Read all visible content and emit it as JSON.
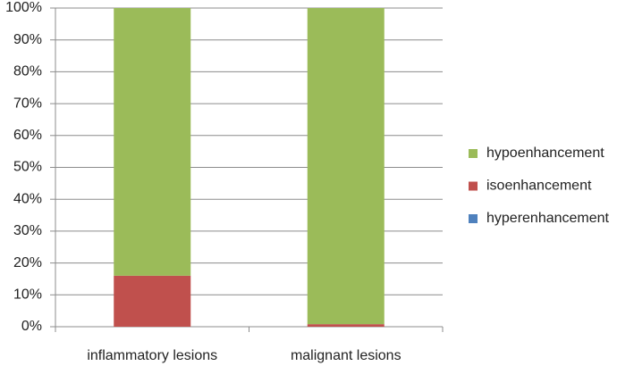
{
  "chart_data": {
    "type": "stacked_bar",
    "categories": [
      "inflammatory lesions",
      "malignant lesions"
    ],
    "series": [
      {
        "name": "hyperenhancement",
        "color": "#4f81bd",
        "values": [
          0,
          0
        ]
      },
      {
        "name": "isoenhancement",
        "color": "#c0504d",
        "values": [
          16,
          0.8
        ]
      },
      {
        "name": "hypoenhancement",
        "color": "#9bbb59",
        "values": [
          84,
          99.2
        ]
      }
    ],
    "ylim": [
      0,
      100
    ],
    "yticks": [
      {
        "value": 0,
        "label": "0%"
      },
      {
        "value": 10,
        "label": "10%"
      },
      {
        "value": 20,
        "label": "20%"
      },
      {
        "value": 30,
        "label": "30%"
      },
      {
        "value": 40,
        "label": "40%"
      },
      {
        "value": 50,
        "label": "50%"
      },
      {
        "value": 60,
        "label": "60%"
      },
      {
        "value": 70,
        "label": "70%"
      },
      {
        "value": 80,
        "label": "80%"
      },
      {
        "value": 90,
        "label": "90%"
      },
      {
        "value": 100,
        "label": "100%"
      }
    ],
    "grid": true,
    "legend": "right"
  }
}
